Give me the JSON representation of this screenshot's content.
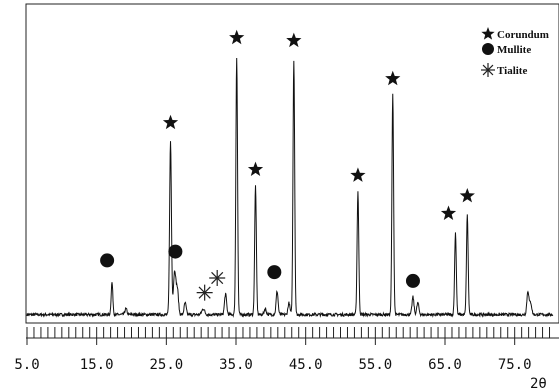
{
  "chart_data": {
    "type": "line",
    "title": "",
    "xlabel": "2θ",
    "ylabel": "",
    "xlim": [
      5.0,
      80.5
    ],
    "ylim": [
      0,
      100
    ],
    "x_tick_labels": [
      "5.0",
      "15.0",
      "25.0",
      "35.0",
      "45.0",
      "55.0",
      "65.0",
      "75.0"
    ],
    "x_tick_values": [
      5,
      15,
      25,
      35,
      45,
      55,
      65,
      75
    ],
    "grid": false,
    "legend": {
      "placement": "top-right",
      "entries": [
        {
          "label": "Corundum",
          "marker": "star"
        },
        {
          "label": "Mullite",
          "marker": "circle"
        },
        {
          "label": "Tialite",
          "marker": "asterisk"
        }
      ]
    },
    "baseline": 1.5,
    "peaks": [
      {
        "x": 17.2,
        "y": 11,
        "w": 0.12
      },
      {
        "x": 19.2,
        "y": 2,
        "w": 0.15
      },
      {
        "x": 25.6,
        "y": 59,
        "w": 0.13
      },
      {
        "x": 26.2,
        "y": 15,
        "w": 0.18
      },
      {
        "x": 26.6,
        "y": 8,
        "w": 0.15
      },
      {
        "x": 27.7,
        "y": 4,
        "w": 0.15
      },
      {
        "x": 30.3,
        "y": 2,
        "w": 0.2
      },
      {
        "x": 33.5,
        "y": 7,
        "w": 0.15
      },
      {
        "x": 35.1,
        "y": 88,
        "w": 0.12
      },
      {
        "x": 37.8,
        "y": 44,
        "w": 0.12
      },
      {
        "x": 39.2,
        "y": 2,
        "w": 0.15
      },
      {
        "x": 40.9,
        "y": 8,
        "w": 0.14
      },
      {
        "x": 42.6,
        "y": 4,
        "w": 0.14
      },
      {
        "x": 43.3,
        "y": 87,
        "w": 0.12
      },
      {
        "x": 52.5,
        "y": 42,
        "w": 0.12
      },
      {
        "x": 57.5,
        "y": 75,
        "w": 0.12
      },
      {
        "x": 60.4,
        "y": 6,
        "w": 0.14
      },
      {
        "x": 61.1,
        "y": 4,
        "w": 0.15
      },
      {
        "x": 66.5,
        "y": 28,
        "w": 0.12
      },
      {
        "x": 68.2,
        "y": 34,
        "w": 0.12
      },
      {
        "x": 76.9,
        "y": 8,
        "w": 0.15
      },
      {
        "x": 77.3,
        "y": 4,
        "w": 0.15
      }
    ],
    "annotations": [
      {
        "phase": "Corundum",
        "marker": "star",
        "x": 25.6,
        "y": 67
      },
      {
        "phase": "Corundum",
        "marker": "star",
        "x": 35.1,
        "y": 96
      },
      {
        "phase": "Corundum",
        "marker": "star",
        "x": 37.8,
        "y": 51
      },
      {
        "phase": "Corundum",
        "marker": "star",
        "x": 43.3,
        "y": 95
      },
      {
        "phase": "Corundum",
        "marker": "star",
        "x": 52.5,
        "y": 49
      },
      {
        "phase": "Corundum",
        "marker": "star",
        "x": 57.5,
        "y": 82
      },
      {
        "phase": "Corundum",
        "marker": "star",
        "x": 65.5,
        "y": 36
      },
      {
        "phase": "Corundum",
        "marker": "star",
        "x": 68.2,
        "y": 42
      },
      {
        "phase": "Mullite",
        "marker": "circle",
        "x": 16.5,
        "y": 20
      },
      {
        "phase": "Mullite",
        "marker": "circle",
        "x": 26.3,
        "y": 23
      },
      {
        "phase": "Mullite",
        "marker": "circle",
        "x": 40.5,
        "y": 16
      },
      {
        "phase": "Mullite",
        "marker": "circle",
        "x": 60.4,
        "y": 13
      },
      {
        "phase": "Tialite",
        "marker": "asterisk",
        "x": 30.5,
        "y": 9
      },
      {
        "phase": "Tialite",
        "marker": "asterisk",
        "x": 32.3,
        "y": 14
      }
    ]
  }
}
